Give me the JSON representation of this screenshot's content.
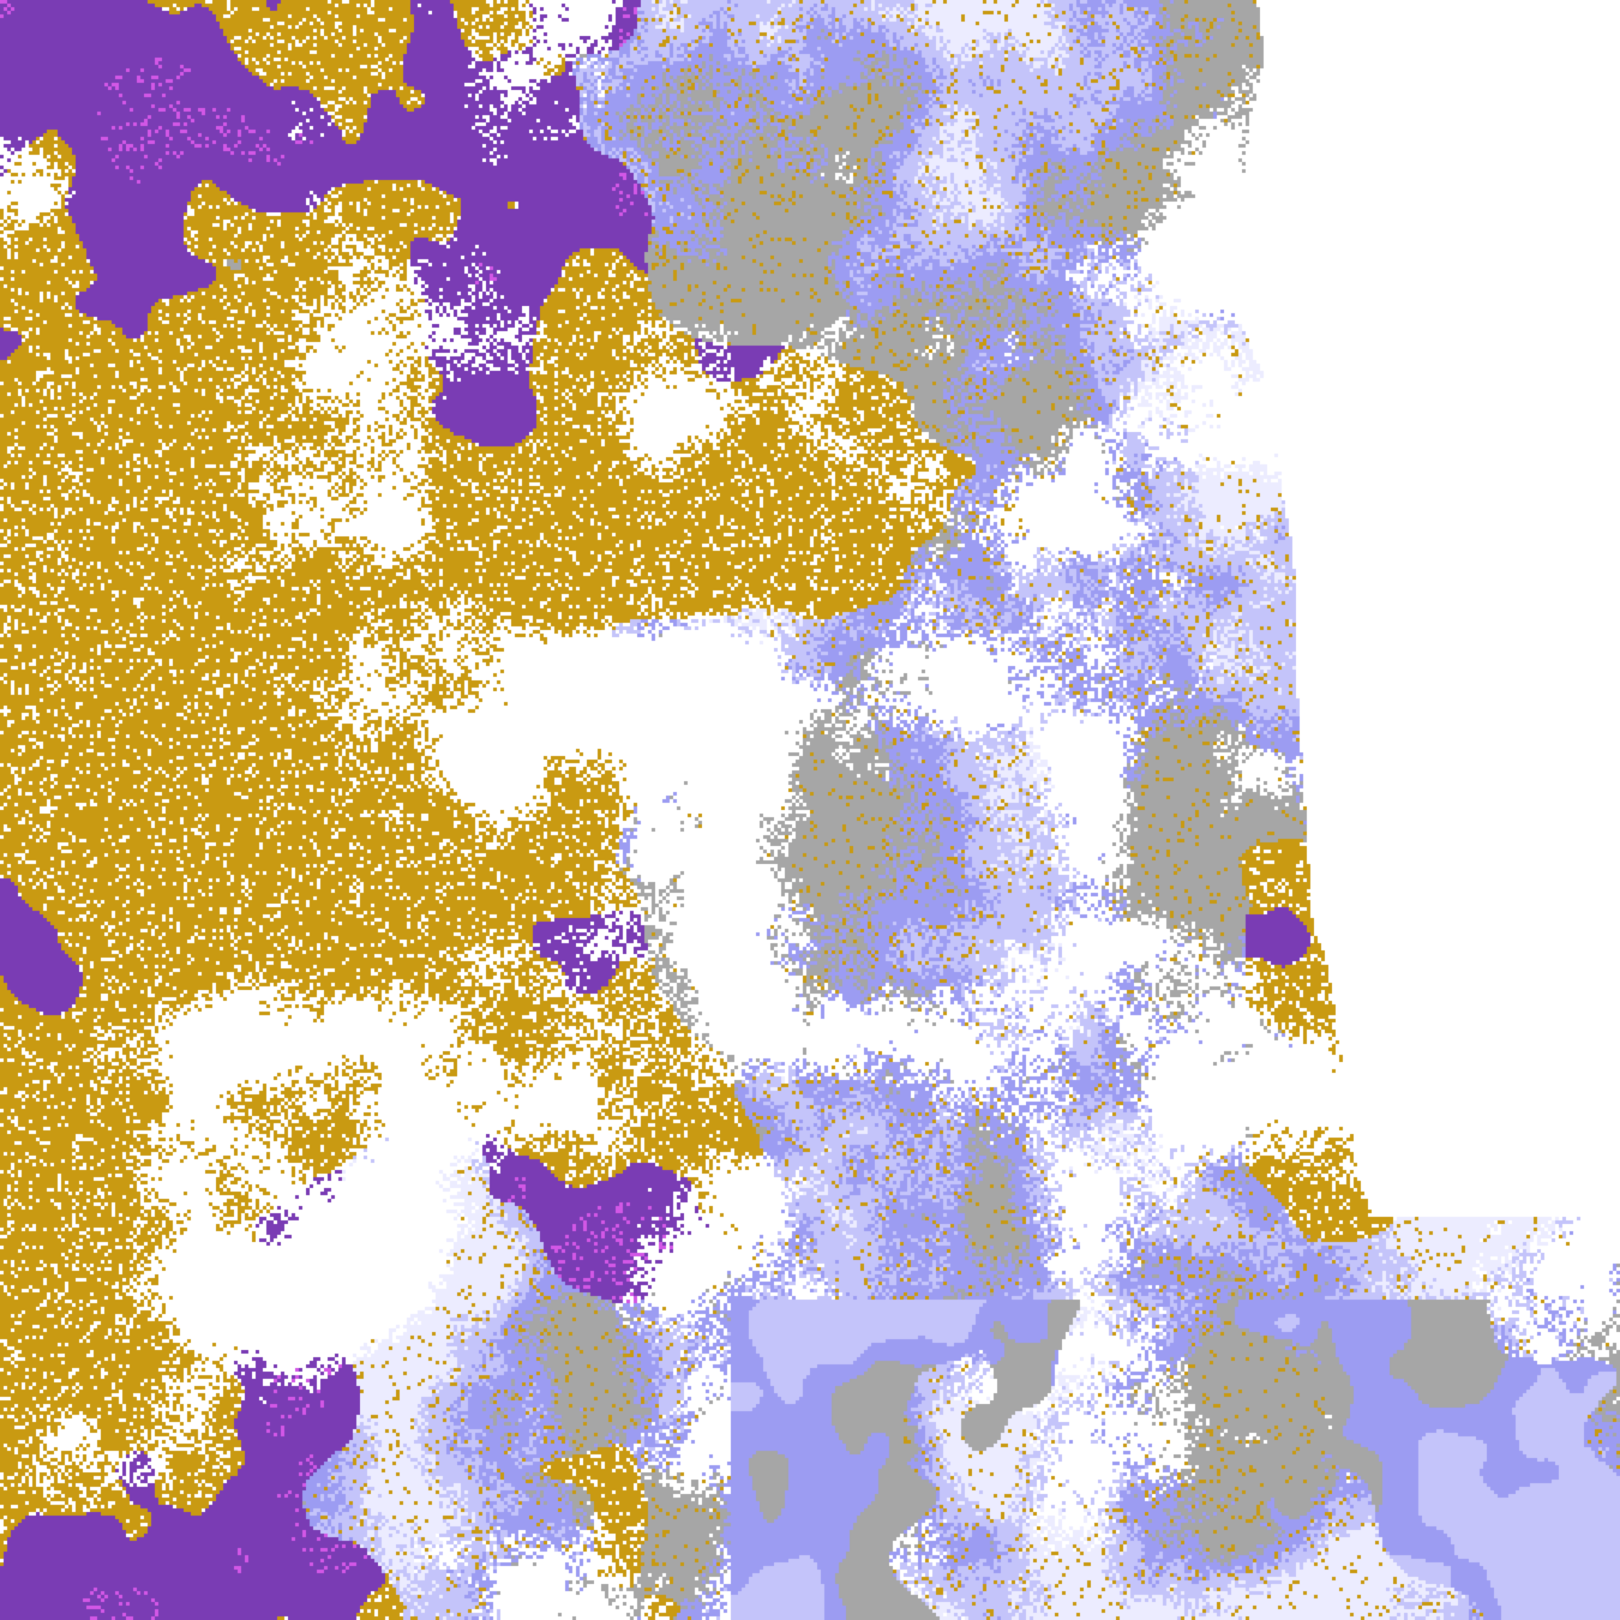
{
  "image": {
    "kind": "false-color satellite cloud classification",
    "palette": {
      "clear": "#ffffff",
      "gold": "#c99a12",
      "purple": "#7a3cb4",
      "magenta": "#d257e6",
      "lavender": "#c4c4fa",
      "periwinkle": "#9c9cf2",
      "gray": "#a6a6a6",
      "pale": "#ececff"
    }
  }
}
